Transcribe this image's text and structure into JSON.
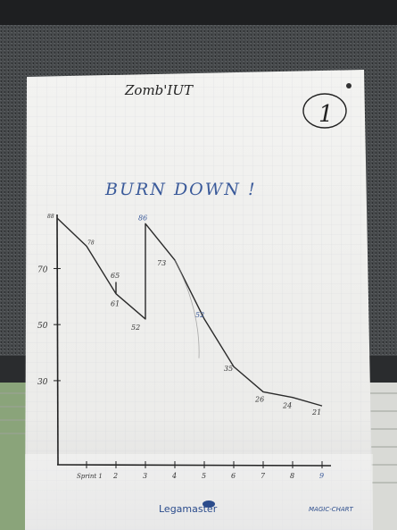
{
  "board": {
    "title": "Zomb'IUT",
    "circled_number": "1",
    "heading": "BURN DOWN !",
    "brand": "Legamaster",
    "brand_tagline": "",
    "brand_right": "MAGIC-CHART"
  },
  "chart_data": {
    "type": "line",
    "title": "BURN DOWN !",
    "xlabel": "",
    "ylabel": "",
    "x_ticks": [
      "Sprint 1",
      "2",
      "3",
      "4",
      "5",
      "6",
      "7",
      "8",
      "9"
    ],
    "y_ticks": [
      30,
      50,
      70
    ],
    "ylim": [
      0,
      88
    ],
    "series": [
      {
        "points": [
          {
            "x": 0,
            "y": 88
          },
          {
            "x": 1,
            "y": 78
          },
          {
            "x": 2,
            "y": 61
          },
          {
            "x": 2,
            "y": 65
          },
          {
            "x": 2,
            "y": 61
          },
          {
            "x": 3,
            "y": 52
          },
          {
            "x": 3,
            "y": 86
          },
          {
            "x": 4,
            "y": 73
          },
          {
            "x": 5,
            "y": 52
          },
          {
            "x": 6,
            "y": 35
          },
          {
            "x": 7,
            "y": 26
          },
          {
            "x": 8,
            "y": 24
          },
          {
            "x": 9,
            "y": 21
          }
        ]
      }
    ],
    "data_labels": [
      {
        "x": 0,
        "y": 88,
        "text": "88"
      },
      {
        "x": 1,
        "y": 78,
        "text": "78"
      },
      {
        "x": 2,
        "y": 65,
        "text": "65"
      },
      {
        "x": 2,
        "y": 61,
        "text": "61"
      },
      {
        "x": 3,
        "y": 52,
        "text": "52"
      },
      {
        "x": 3,
        "y": 86,
        "text": "86"
      },
      {
        "x": 4,
        "y": 73,
        "text": "73"
      },
      {
        "x": 5,
        "y": 52,
        "text": "52"
      },
      {
        "x": 6,
        "y": 35,
        "text": "35"
      },
      {
        "x": 7,
        "y": 26,
        "text": "26"
      },
      {
        "x": 8,
        "y": 24,
        "text": "24"
      },
      {
        "x": 9,
        "y": 21,
        "text": "21"
      }
    ],
    "grid": true,
    "colors": {
      "line": "#2a2a2a",
      "labels": "#333333",
      "blue_pen": "#3a5a9a"
    }
  }
}
